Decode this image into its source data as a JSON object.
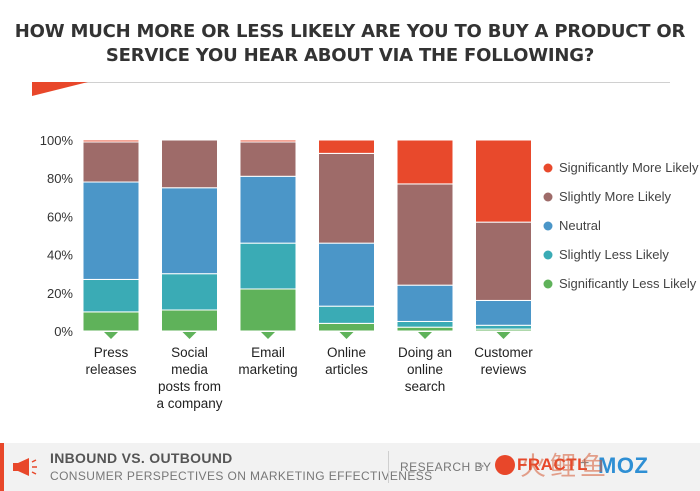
{
  "title_line1": "HOW MUCH MORE OR LESS LIKELY ARE YOU TO BUY A PRODUCT OR",
  "title_line2": "SERVICE YOU HEAR ABOUT VIA THE FOLLOWING?",
  "chart_data": {
    "type": "bar",
    "stacked": true,
    "percent": true,
    "title": "HOW MUCH MORE OR LESS LIKELY ARE YOU TO BUY A PRODUCT OR SERVICE YOU HEAR ABOUT VIA THE FOLLOWING?",
    "categories": [
      [
        "Press",
        "releases"
      ],
      [
        "Social",
        "media",
        "posts from",
        "a company"
      ],
      [
        "Email",
        "marketing"
      ],
      [
        "Online",
        "articles"
      ],
      [
        "Doing an",
        "online",
        "search"
      ],
      [
        "Customer",
        "reviews"
      ]
    ],
    "yticks": [
      "0%",
      "20%",
      "40%",
      "60%",
      "80%",
      "100%"
    ],
    "ylim": [
      0,
      100
    ],
    "legend_position": "right",
    "series": [
      {
        "name": "Significantly Less Likely",
        "color": "#5fb25a",
        "values": [
          10,
          11,
          22,
          4,
          2,
          1
        ]
      },
      {
        "name": "Slightly Less Likely",
        "color": "#3aabb5",
        "values": [
          17,
          19,
          24,
          9,
          3,
          2
        ]
      },
      {
        "name": "Neutral",
        "color": "#4b96c8",
        "values": [
          51,
          45,
          35,
          33,
          19,
          13
        ]
      },
      {
        "name": "Slightly More Likely",
        "color": "#9e6b69",
        "values": [
          21,
          25,
          18,
          47,
          53,
          41
        ]
      },
      {
        "name": "Significantly More Likely",
        "color": "#e8492c",
        "values": [
          1,
          0,
          1,
          7,
          23,
          43
        ]
      }
    ]
  },
  "footer": {
    "title": "INBOUND VS. OUTBOUND",
    "subtitle": "CONSUMER PERSPECTIVES ON MARKETING EFFECTIVENESS",
    "research_by": "RESEARCH BY",
    "arrow": ">",
    "brand1": "FRACTL",
    "plus": "+",
    "brand2": "MOZ",
    "accent": "#e8472a"
  },
  "watermark": "火鲤鱼"
}
